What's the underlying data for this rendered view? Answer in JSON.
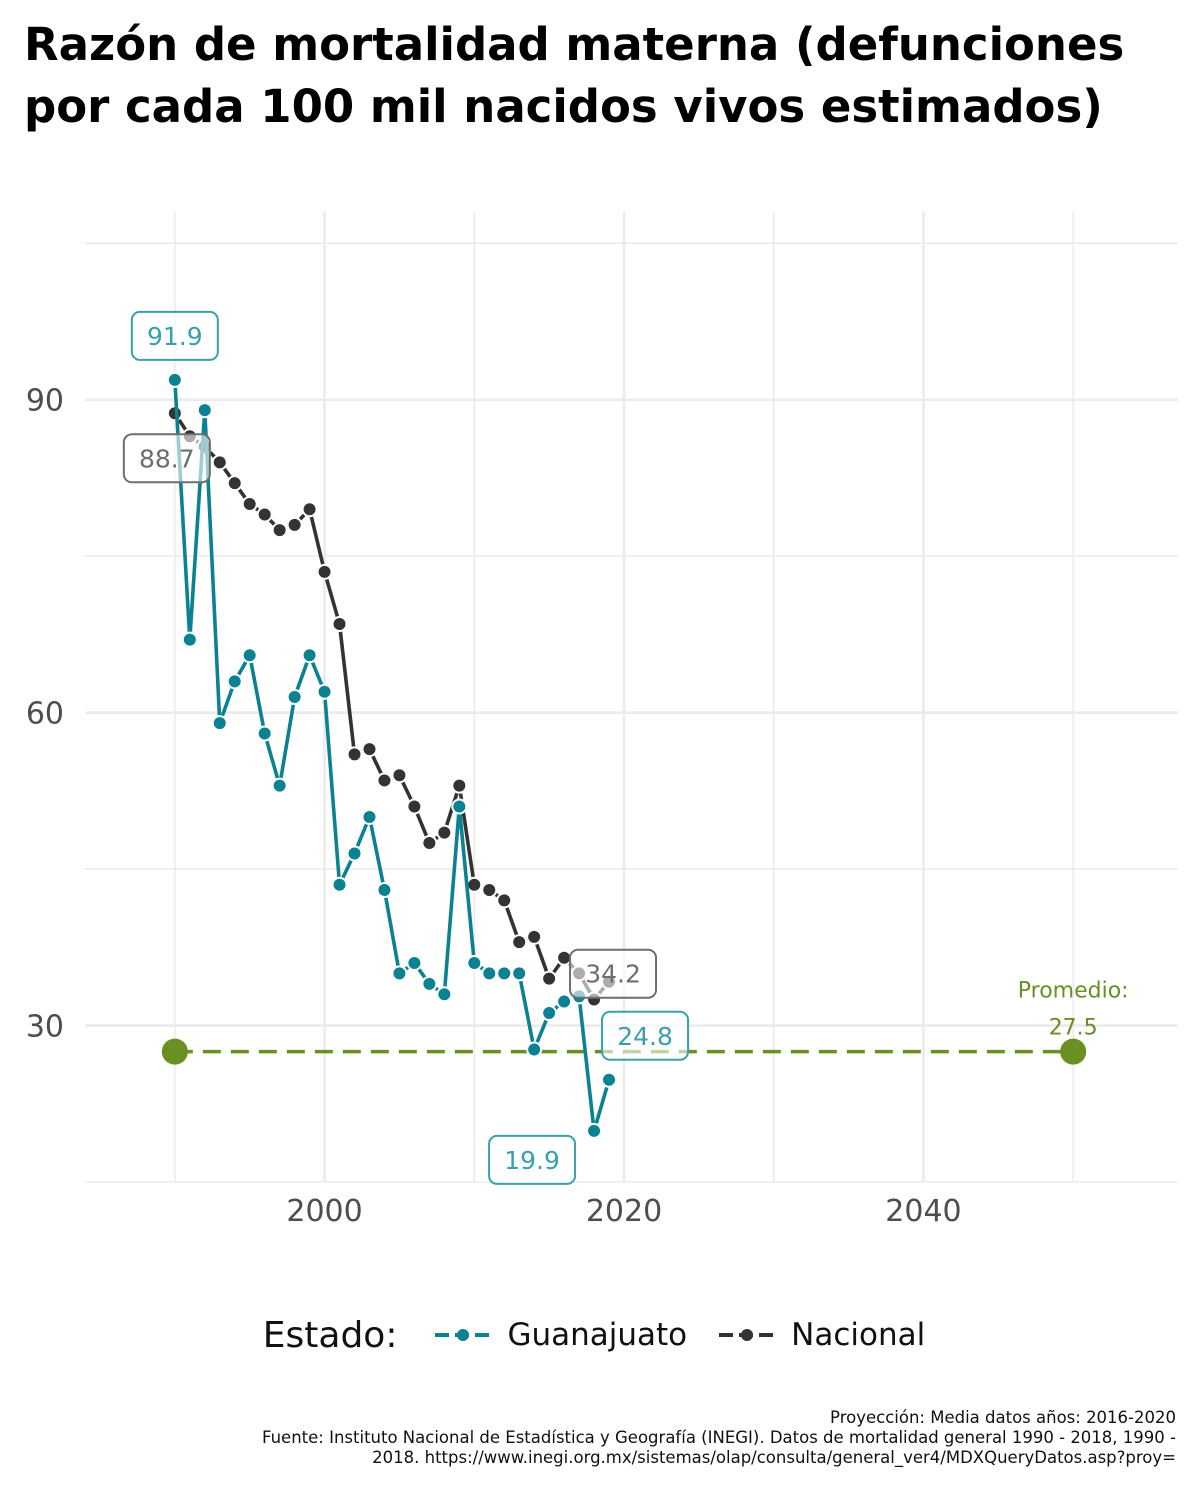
{
  "title": "Razón de mortalidad materna (defunciones por cada 100 mil nacidos vivos estimados)",
  "chart_data": {
    "type": "line",
    "xlabel": "",
    "ylabel": "",
    "xlim": [
      1984,
      2057
    ],
    "ylim": [
      15,
      108
    ],
    "x_ticks": [
      2000,
      2020,
      2040
    ],
    "y_ticks": [
      30,
      60,
      90
    ],
    "grid": true,
    "legend_position": "bottom",
    "series": [
      {
        "name": "Guanajuato",
        "color": "#0a8292",
        "x": [
          1990,
          1991,
          1992,
          1993,
          1994,
          1995,
          1996,
          1997,
          1998,
          1999,
          2000,
          2001,
          2002,
          2003,
          2004,
          2005,
          2006,
          2007,
          2008,
          2009,
          2010,
          2011,
          2012,
          2013,
          2014,
          2015,
          2016,
          2017,
          2018,
          2019
        ],
        "y": [
          91.9,
          67.0,
          89.0,
          59.0,
          63.0,
          65.5,
          58.0,
          53.0,
          61.5,
          65.5,
          62.0,
          43.5,
          46.5,
          50.0,
          43.0,
          35.0,
          36.0,
          34.0,
          33.0,
          51.0,
          36.0,
          35.0,
          35.0,
          35.0,
          27.7,
          31.2,
          32.3,
          32.8,
          19.9,
          24.8
        ]
      },
      {
        "name": "Nacional",
        "color": "#333333",
        "x": [
          1990,
          1991,
          1992,
          1993,
          1994,
          1995,
          1996,
          1997,
          1998,
          1999,
          2000,
          2001,
          2002,
          2003,
          2004,
          2005,
          2006,
          2007,
          2008,
          2009,
          2010,
          2011,
          2012,
          2013,
          2014,
          2015,
          2016,
          2017,
          2018,
          2019
        ],
        "y": [
          88.7,
          86.5,
          85.5,
          84.0,
          82.0,
          80.0,
          79.0,
          77.5,
          78.0,
          79.5,
          73.5,
          68.5,
          56.0,
          56.5,
          53.5,
          54.0,
          51.0,
          47.5,
          48.5,
          53.0,
          43.5,
          43.0,
          42.0,
          38.0,
          38.5,
          34.5,
          36.5,
          35.0,
          32.5,
          34.2
        ]
      }
    ],
    "average_line": {
      "x": [
        1990,
        2050
      ],
      "y": 27.5,
      "color": "#6a8f22",
      "label_line1": "Promedio:",
      "label_line2": "27.5"
    },
    "labels": [
      {
        "text": "91.9",
        "series": "Guanajuato",
        "x": 1990,
        "y": 91.9,
        "color": "#3aa0ad"
      },
      {
        "text": "88.7",
        "series": "Nacional",
        "x": 1990,
        "y": 88.7,
        "color": "#6e6e6e"
      },
      {
        "text": "34.2",
        "series": "Nacional",
        "x": 2019,
        "y": 34.2,
        "color": "#6e6e6e"
      },
      {
        "text": "24.8",
        "series": "Guanajuato",
        "x": 2019,
        "y": 24.8,
        "color": "#3aa0ad"
      },
      {
        "text": "19.9",
        "series": "Guanajuato",
        "x": 2018,
        "y": 19.9,
        "color": "#3aa0ad"
      }
    ]
  },
  "legend": {
    "title": "Estado:",
    "items": [
      {
        "label": "Guanajuato",
        "color": "#0a8292"
      },
      {
        "label": "Nacional",
        "color": "#333333"
      }
    ]
  },
  "caption": {
    "line1": "Proyección: Media datos años: 2016-2020",
    "line2": "Fuente: Instituto Nacional de Estadística y Geografía (INEGI). Datos de mortalidad general 1990 - 2018, 1990 -",
    "line3": "2018. https://www.inegi.org.mx/sistemas/olap/consulta/general_ver4/MDXQueryDatos.asp?proy="
  }
}
